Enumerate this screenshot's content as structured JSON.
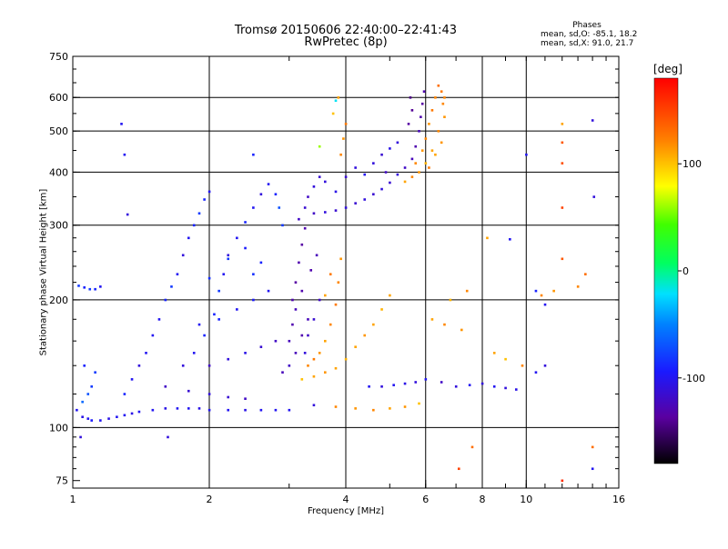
{
  "chart_data": {
    "type": "scatter",
    "title": "Tromsø 20150606 22:40:00–22:41:43",
    "subtitle": "RwPretec (8p)",
    "stats": {
      "heading": "Phases",
      "line1": "mean, sd,O: -85.1, 18.2",
      "line2": "mean, sd,X:  91.0, 21.7"
    },
    "xlabel": "Frequency [MHz]",
    "ylabel": "Stationary phase Virtual Height [km]",
    "x_scale": "log",
    "y_scale": "log",
    "xlim": [
      1,
      16
    ],
    "ylim": [
      72,
      750
    ],
    "x_ticks": [
      1,
      2,
      4,
      6,
      8,
      10,
      16
    ],
    "x_tick_labels": [
      "1",
      "2",
      "4",
      "6",
      "8",
      "10",
      "16"
    ],
    "x_gridlines": [
      2,
      4,
      6,
      8,
      10
    ],
    "y_ticks": [
      75,
      100,
      200,
      300,
      400,
      500,
      600,
      750
    ],
    "y_tick_labels": [
      "75",
      "100",
      "200",
      "300",
      "400",
      "500",
      "600",
      "750"
    ],
    "y_gridlines": [
      100,
      200,
      300,
      400,
      500,
      600
    ],
    "grid": true,
    "colorbar": {
      "label": "[deg]",
      "range": [
        -180,
        180
      ],
      "ticks": [
        100,
        0,
        -100
      ],
      "tick_labels": [
        "100",
        "0",
        "-100"
      ]
    },
    "series": [
      {
        "points": [
          [
            1.02,
            110,
            -100
          ],
          [
            1.05,
            106,
            -105
          ],
          [
            1.08,
            105,
            -100
          ],
          [
            1.1,
            104,
            -95
          ],
          [
            1.15,
            104,
            -100
          ],
          [
            1.2,
            105,
            -105
          ],
          [
            1.25,
            106,
            -100
          ],
          [
            1.3,
            107,
            -100
          ],
          [
            1.35,
            108,
            -105
          ],
          [
            1.4,
            109,
            -100
          ],
          [
            1.5,
            110,
            -100
          ],
          [
            1.6,
            111,
            -105
          ],
          [
            1.7,
            111,
            -100
          ],
          [
            1.8,
            111,
            -100
          ],
          [
            1.9,
            111,
            -105
          ],
          [
            2.0,
            110,
            -100
          ],
          [
            2.2,
            110,
            -100
          ],
          [
            2.4,
            110,
            -105
          ],
          [
            2.6,
            110,
            -100
          ],
          [
            2.8,
            110,
            -100
          ],
          [
            3.0,
            110,
            -100
          ],
          [
            3.4,
            113,
            -110
          ],
          [
            3.8,
            112,
            120
          ],
          [
            4.2,
            111,
            115
          ],
          [
            4.6,
            110,
            120
          ],
          [
            5.0,
            111,
            110
          ],
          [
            5.4,
            112,
            115
          ],
          [
            5.8,
            114,
            100
          ],
          [
            1.05,
            115,
            -60
          ],
          [
            1.08,
            120,
            -70
          ],
          [
            1.1,
            125,
            -80
          ],
          [
            1.12,
            135,
            -80
          ],
          [
            1.06,
            140,
            -90
          ],
          [
            1.03,
            216,
            -80
          ],
          [
            1.06,
            214,
            -90
          ],
          [
            1.09,
            212,
            -80
          ],
          [
            1.12,
            212,
            -90
          ],
          [
            1.15,
            215,
            -100
          ],
          [
            1.3,
            120,
            -90
          ],
          [
            1.35,
            130,
            -100
          ],
          [
            1.4,
            140,
            -110
          ],
          [
            1.45,
            150,
            -100
          ],
          [
            1.5,
            165,
            -100
          ],
          [
            1.55,
            180,
            -100
          ],
          [
            1.6,
            200,
            -90
          ],
          [
            1.65,
            215,
            -80
          ],
          [
            1.7,
            230,
            -100
          ],
          [
            1.75,
            255,
            -110
          ],
          [
            1.8,
            280,
            -100
          ],
          [
            1.85,
            300,
            -90
          ],
          [
            1.9,
            320,
            -80
          ],
          [
            1.95,
            345,
            -90
          ],
          [
            2.0,
            360,
            -100
          ],
          [
            1.75,
            140,
            -110
          ],
          [
            1.85,
            150,
            -100
          ],
          [
            1.95,
            165,
            -90
          ],
          [
            2.05,
            185,
            -90
          ],
          [
            2.1,
            210,
            -80
          ],
          [
            2.15,
            230,
            -100
          ],
          [
            2.2,
            255,
            -110
          ],
          [
            2.3,
            280,
            -100
          ],
          [
            2.4,
            305,
            -90
          ],
          [
            2.5,
            330,
            -100
          ],
          [
            2.6,
            355,
            -110
          ],
          [
            2.7,
            375,
            -100
          ],
          [
            2.8,
            355,
            -90
          ],
          [
            2.85,
            330,
            -70
          ],
          [
            2.9,
            300,
            -80
          ],
          [
            1.6,
            125,
            -120
          ],
          [
            1.8,
            122,
            -115
          ],
          [
            2.0,
            120,
            -110
          ],
          [
            2.2,
            118,
            -115
          ],
          [
            2.4,
            117,
            -120
          ],
          [
            2.0,
            140,
            -120
          ],
          [
            2.2,
            145,
            -110
          ],
          [
            2.4,
            150,
            -105
          ],
          [
            2.6,
            155,
            -115
          ],
          [
            2.8,
            160,
            -120
          ],
          [
            1.9,
            175,
            -100
          ],
          [
            2.1,
            180,
            -90
          ],
          [
            2.3,
            190,
            -100
          ],
          [
            2.5,
            200,
            -95
          ],
          [
            2.7,
            210,
            -100
          ],
          [
            2.5,
            230,
            -85
          ],
          [
            2.6,
            245,
            -90
          ],
          [
            2.4,
            265,
            -95
          ],
          [
            2.2,
            250,
            -80
          ],
          [
            2.0,
            225,
            -85
          ],
          [
            2.9,
            135,
            -125
          ],
          [
            3.0,
            140,
            -120
          ],
          [
            3.1,
            150,
            -125
          ],
          [
            3.2,
            165,
            -130
          ],
          [
            3.3,
            180,
            -125
          ],
          [
            3.05,
            200,
            -130
          ],
          [
            3.1,
            220,
            -135
          ],
          [
            3.15,
            245,
            -130
          ],
          [
            3.2,
            270,
            -135
          ],
          [
            3.25,
            295,
            -130
          ],
          [
            3.15,
            310,
            -120
          ],
          [
            3.25,
            330,
            -115
          ],
          [
            3.3,
            350,
            -120
          ],
          [
            3.4,
            370,
            -110
          ],
          [
            3.5,
            390,
            -115
          ],
          [
            3.4,
            320,
            -120
          ],
          [
            3.6,
            322,
            -110
          ],
          [
            3.8,
            325,
            -115
          ],
          [
            4.0,
            330,
            -110
          ],
          [
            4.2,
            338,
            -115
          ],
          [
            4.4,
            345,
            -110
          ],
          [
            4.6,
            355,
            -115
          ],
          [
            4.8,
            365,
            -110
          ],
          [
            5.0,
            378,
            -115
          ],
          [
            5.2,
            395,
            -110
          ],
          [
            5.4,
            410,
            -120
          ],
          [
            5.6,
            430,
            -125
          ],
          [
            5.7,
            460,
            -130
          ],
          [
            5.8,
            500,
            -125
          ],
          [
            5.85,
            540,
            -130
          ],
          [
            5.9,
            580,
            -135
          ],
          [
            5.95,
            620,
            -130
          ],
          [
            5.6,
            560,
            -140
          ],
          [
            5.55,
            600,
            -145
          ],
          [
            5.5,
            520,
            -135
          ],
          [
            3.6,
            380,
            -110
          ],
          [
            3.8,
            360,
            -105
          ],
          [
            4.0,
            390,
            -115
          ],
          [
            4.2,
            410,
            -110
          ],
          [
            4.4,
            395,
            -100
          ],
          [
            4.6,
            420,
            -110
          ],
          [
            4.8,
            440,
            -115
          ],
          [
            5.0,
            455,
            -105
          ],
          [
            5.2,
            470,
            -110
          ],
          [
            4.9,
            400,
            -120
          ],
          [
            3.0,
            160,
            -125
          ],
          [
            3.05,
            175,
            -130
          ],
          [
            3.1,
            190,
            -125
          ],
          [
            3.2,
            210,
            -130
          ],
          [
            3.35,
            235,
            -130
          ],
          [
            3.45,
            255,
            -125
          ],
          [
            3.5,
            200,
            -120
          ],
          [
            3.4,
            180,
            -115
          ],
          [
            3.3,
            165,
            -120
          ],
          [
            3.25,
            150,
            -110
          ],
          [
            3.3,
            140,
            120
          ],
          [
            3.4,
            145,
            125
          ],
          [
            3.5,
            150,
            115
          ],
          [
            3.6,
            160,
            110
          ],
          [
            3.7,
            175,
            120
          ],
          [
            3.8,
            195,
            125
          ],
          [
            3.85,
            220,
            120
          ],
          [
            3.9,
            250,
            115
          ],
          [
            3.7,
            230,
            125
          ],
          [
            3.6,
            205,
            110
          ],
          [
            3.2,
            130,
            100
          ],
          [
            3.4,
            132,
            110
          ],
          [
            3.6,
            135,
            115
          ],
          [
            3.8,
            138,
            110
          ],
          [
            4.0,
            145,
            105
          ],
          [
            4.2,
            155,
            110
          ],
          [
            4.4,
            165,
            115
          ],
          [
            4.6,
            175,
            110
          ],
          [
            4.8,
            190,
            105
          ],
          [
            5.0,
            205,
            110
          ],
          [
            3.9,
            440,
            120
          ],
          [
            3.95,
            480,
            115
          ],
          [
            4.0,
            520,
            125
          ],
          [
            3.85,
            600,
            110
          ],
          [
            3.75,
            550,
            100
          ],
          [
            5.7,
            420,
            120
          ],
          [
            5.9,
            450,
            115
          ],
          [
            6.0,
            480,
            120
          ],
          [
            6.1,
            520,
            115
          ],
          [
            6.2,
            560,
            125
          ],
          [
            6.3,
            600,
            120
          ],
          [
            6.4,
            640,
            130
          ],
          [
            6.5,
            620,
            125
          ],
          [
            6.55,
            580,
            120
          ],
          [
            6.6,
            540,
            115
          ],
          [
            6.2,
            450,
            110
          ],
          [
            6.0,
            420,
            105
          ],
          [
            5.8,
            400,
            115
          ],
          [
            5.6,
            390,
            120
          ],
          [
            5.4,
            380,
            110
          ],
          [
            6.4,
            500,
            120
          ],
          [
            6.5,
            470,
            115
          ],
          [
            6.3,
            440,
            110
          ],
          [
            6.1,
            410,
            125
          ],
          [
            6.6,
            600,
            120
          ],
          [
            4.5,
            125,
            -100
          ],
          [
            4.8,
            125,
            -110
          ],
          [
            5.1,
            126,
            -100
          ],
          [
            5.4,
            127,
            -105
          ],
          [
            5.7,
            128,
            -110
          ],
          [
            6.0,
            130,
            -100
          ],
          [
            6.5,
            128,
            -120
          ],
          [
            7.0,
            125,
            -110
          ],
          [
            7.5,
            126,
            -100
          ],
          [
            8.0,
            127,
            -110
          ],
          [
            8.5,
            125,
            -100
          ],
          [
            9.0,
            124,
            -110
          ],
          [
            9.5,
            123,
            -105
          ],
          [
            10.5,
            135,
            -100
          ],
          [
            11.0,
            140,
            -110
          ],
          [
            6.2,
            180,
            110
          ],
          [
            6.6,
            175,
            120
          ],
          [
            7.2,
            170,
            115
          ],
          [
            6.8,
            200,
            105
          ],
          [
            7.4,
            210,
            120
          ],
          [
            8.5,
            150,
            110
          ],
          [
            9.0,
            145,
            100
          ],
          [
            9.8,
            140,
            120
          ],
          [
            8.2,
            280,
            110
          ],
          [
            9.2,
            278,
            -100
          ],
          [
            10.8,
            205,
            120
          ],
          [
            11.5,
            210,
            115
          ],
          [
            12.0,
            520,
            110
          ],
          [
            12.0,
            470,
            140
          ],
          [
            12.0,
            420,
            145
          ],
          [
            12.0,
            330,
            150
          ],
          [
            12.0,
            250,
            140
          ],
          [
            14.0,
            530,
            -110
          ],
          [
            14.1,
            350,
            -110
          ],
          [
            14.0,
            90,
            130
          ],
          [
            10.0,
            440,
            -100
          ],
          [
            10.5,
            210,
            -90
          ],
          [
            11.0,
            195,
            -100
          ],
          [
            13.5,
            230,
            130
          ],
          [
            13.0,
            215,
            120
          ],
          [
            7.1,
            80,
            150
          ],
          [
            7.6,
            90,
            130
          ],
          [
            12.0,
            75,
            160
          ],
          [
            14.0,
            80,
            -100
          ],
          [
            1.28,
            520,
            -100
          ],
          [
            1.3,
            440,
            -100
          ],
          [
            1.32,
            318,
            -110
          ],
          [
            1.62,
            95,
            -110
          ],
          [
            1.04,
            95,
            -110
          ],
          [
            3.8,
            590,
            -20
          ],
          [
            2.5,
            440,
            -90
          ],
          [
            3.5,
            460,
            60
          ]
        ]
      }
    ]
  }
}
